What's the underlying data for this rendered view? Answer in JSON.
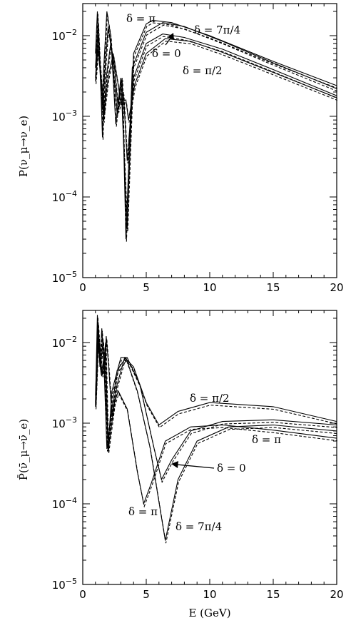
{
  "chart_data": [
    {
      "type": "line",
      "panel": "top",
      "ylabel": "P(ν_μ→ν_e)",
      "xlabel": "",
      "xlim": [
        0,
        20
      ],
      "ylim": [
        1e-05,
        0.025
      ],
      "yscale": "log",
      "xticks": [
        "0",
        "5",
        "10",
        "15",
        "20"
      ],
      "yticks": [
        {
          "value": 0.01,
          "base": "10",
          "exp": "−2"
        },
        {
          "value": 0.001,
          "base": "10",
          "exp": "−3"
        },
        {
          "value": 0.0001,
          "base": "10",
          "exp": "−4"
        },
        {
          "value": 1e-05,
          "base": "10",
          "exp": "−5"
        }
      ],
      "series": [
        {
          "name": "δ = π",
          "points": [
            [
              1.0,
              0.006
            ],
            [
              1.15,
              0.02
            ],
            [
              1.35,
              0.004
            ],
            [
              1.5,
              0.0012
            ],
            [
              1.65,
              0.004
            ],
            [
              1.9,
              0.02
            ],
            [
              2.2,
              0.01
            ],
            [
              2.6,
              0.0008
            ],
            [
              3.0,
              0.003
            ],
            [
              3.5,
              4e-05
            ],
            [
              4.0,
              0.006
            ],
            [
              5.0,
              0.014
            ],
            [
              5.5,
              0.0155
            ],
            [
              7,
              0.0145
            ],
            [
              10,
              0.01
            ],
            [
              15,
              0.0048
            ],
            [
              20,
              0.0024
            ]
          ]
        },
        {
          "name": "δ = 7π/4",
          "points": [
            [
              1.0,
              0.004
            ],
            [
              1.2,
              0.015
            ],
            [
              1.4,
              0.003
            ],
            [
              1.55,
              0.00055
            ],
            [
              1.7,
              0.003
            ],
            [
              2.0,
              0.013
            ],
            [
              2.3,
              0.006
            ],
            [
              2.7,
              0.0011
            ],
            [
              3.1,
              0.003
            ],
            [
              3.4,
              3e-05
            ],
            [
              3.9,
              0.004
            ],
            [
              5.0,
              0.011
            ],
            [
              6.3,
              0.0145
            ],
            [
              8,
              0.013
            ],
            [
              11,
              0.0085
            ],
            [
              15,
              0.0046
            ],
            [
              20,
              0.0022
            ]
          ]
        },
        {
          "name": "δ = 0",
          "points": [
            [
              1.0,
              0.003
            ],
            [
              1.2,
              0.01
            ],
            [
              1.45,
              0.003
            ],
            [
              1.65,
              0.0009
            ],
            [
              1.85,
              0.003
            ],
            [
              2.2,
              0.008
            ],
            [
              2.5,
              0.004
            ],
            [
              2.8,
              0.0012
            ],
            [
              3.2,
              0.002
            ],
            [
              3.5,
              0.00028
            ],
            [
              4.0,
              0.003
            ],
            [
              5.0,
              0.008
            ],
            [
              6.3,
              0.0105
            ],
            [
              8,
              0.0095
            ],
            [
              11,
              0.0068
            ],
            [
              15,
              0.0038
            ],
            [
              20,
              0.0018
            ]
          ]
        },
        {
          "name": "δ = π/2",
          "points": [
            [
              1.0,
              0.0027
            ],
            [
              1.2,
              0.007
            ],
            [
              1.45,
              0.0026
            ],
            [
              1.7,
              0.0012
            ],
            [
              2.0,
              0.003
            ],
            [
              2.4,
              0.006
            ],
            [
              2.7,
              0.003
            ],
            [
              3.0,
              0.0015
            ],
            [
              3.4,
              0.0016
            ],
            [
              3.6,
              0.0009
            ],
            [
              4.1,
              0.0025
            ],
            [
              5.0,
              0.006
            ],
            [
              6.5,
              0.0092
            ],
            [
              8.5,
              0.0085
            ],
            [
              11,
              0.0062
            ],
            [
              15,
              0.0035
            ],
            [
              20,
              0.0017
            ]
          ]
        }
      ],
      "annotations": [
        {
          "text": "δ = π"
        },
        {
          "text": "δ = 7π/4"
        },
        {
          "text": "δ = 0"
        },
        {
          "text": "δ = π/2"
        }
      ]
    },
    {
      "type": "line",
      "panel": "bottom",
      "ylabel": "P̄(ν̄_μ→ν̄_e)",
      "xlabel": "E (GeV)",
      "xlim": [
        0,
        20
      ],
      "ylim": [
        1e-05,
        0.025
      ],
      "yscale": "log",
      "xticks": [
        "0",
        "5",
        "10",
        "15",
        "20"
      ],
      "yticks": [
        {
          "value": 0.01,
          "base": "10",
          "exp": "−2"
        },
        {
          "value": 0.001,
          "base": "10",
          "exp": "−3"
        },
        {
          "value": 0.0001,
          "base": "10",
          "exp": "−4"
        },
        {
          "value": 1e-05,
          "base": "10",
          "exp": "−5"
        }
      ],
      "series": [
        {
          "name": "δ = π/2",
          "points": [
            [
              1.0,
              0.0018
            ],
            [
              1.15,
              0.022
            ],
            [
              1.35,
              0.005
            ],
            [
              1.5,
              0.015
            ],
            [
              1.7,
              0.004
            ],
            [
              1.85,
              0.012
            ],
            [
              2.05,
              0.0048
            ],
            [
              2.3,
              0.0012
            ],
            [
              2.7,
              0.003
            ],
            [
              3.3,
              0.0065
            ],
            [
              4.0,
              0.005
            ],
            [
              5.0,
              0.0018
            ],
            [
              6.0,
              0.00095
            ],
            [
              7.5,
              0.0014
            ],
            [
              10,
              0.0018
            ],
            [
              15,
              0.0016
            ],
            [
              20,
              0.00105
            ]
          ]
        },
        {
          "name": "δ = 0",
          "points": [
            [
              1.0,
              0.0022
            ],
            [
              1.2,
              0.018
            ],
            [
              1.4,
              0.006
            ],
            [
              1.55,
              0.004
            ],
            [
              1.8,
              0.01
            ],
            [
              2.0,
              0.0005
            ],
            [
              2.3,
              0.0025
            ],
            [
              3.0,
              0.0065
            ],
            [
              3.5,
              0.0065
            ],
            [
              4.5,
              0.003
            ],
            [
              5.6,
              0.0005
            ],
            [
              6.2,
              0.0002
            ],
            [
              7.0,
              0.00035
            ],
            [
              8.5,
              0.0008
            ],
            [
              11,
              0.00105
            ],
            [
              15,
              0.0011
            ],
            [
              20,
              0.00095
            ]
          ]
        },
        {
          "name": "δ = π",
          "points": [
            [
              1.0,
              0.0016
            ],
            [
              1.2,
              0.01
            ],
            [
              1.45,
              0.004
            ],
            [
              1.7,
              0.007
            ],
            [
              2.0,
              0.00045
            ],
            [
              2.5,
              0.0018
            ],
            [
              2.8,
              0.0025
            ],
            [
              3.5,
              0.0015
            ],
            [
              4.3,
              0.00025
            ],
            [
              4.8,
              0.0001
            ],
            [
              5.4,
              0.00018
            ],
            [
              6.5,
              0.0006
            ],
            [
              8.5,
              0.0009
            ],
            [
              11,
              0.00095
            ],
            [
              15,
              0.00082
            ],
            [
              20,
              0.00065
            ]
          ]
        },
        {
          "name": "δ = 7π/4",
          "points": [
            [
              1.0,
              0.0017
            ],
            [
              1.2,
              0.014
            ],
            [
              1.4,
              0.005
            ],
            [
              1.6,
              0.011
            ],
            [
              1.9,
              0.00048
            ],
            [
              2.3,
              0.0015
            ],
            [
              2.7,
              0.0045
            ],
            [
              3.4,
              0.0065
            ],
            [
              4.3,
              0.0025
            ],
            [
              5.3,
              0.0005
            ],
            [
              6.5,
              3.5e-05
            ],
            [
              7.5,
              0.0002
            ],
            [
              9,
              0.0006
            ],
            [
              11.5,
              0.0009
            ],
            [
              15,
              0.00095
            ],
            [
              20,
              0.0008
            ]
          ]
        }
      ],
      "annotations": [
        {
          "text": "δ = π/2"
        },
        {
          "text": "δ = 0"
        },
        {
          "text": "δ = π"
        },
        {
          "text": "δ = π"
        },
        {
          "text": "δ = 7π/4"
        }
      ]
    }
  ]
}
